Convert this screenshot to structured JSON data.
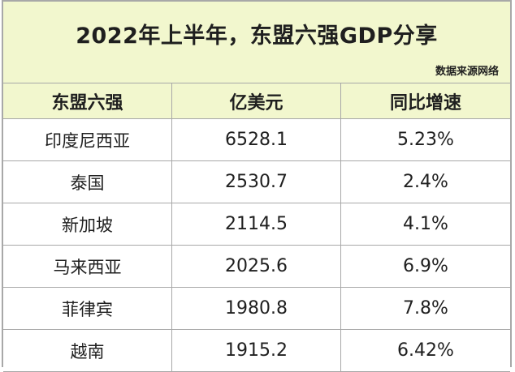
{
  "title": "2022年上半年，东盟六强GDP分享",
  "source": "数据来源网络",
  "columns": [
    "东盟六强",
    "亿美元",
    "同比增速"
  ],
  "rows": [
    {
      "country": "印度尼西亚",
      "gdp": "6528.1",
      "growth": "5.23%"
    },
    {
      "country": "泰国",
      "gdp": "2530.7",
      "growth": "2.4%"
    },
    {
      "country": "新加坡",
      "gdp": "2114.5",
      "growth": "4.1%"
    },
    {
      "country": "马来西亚",
      "gdp": "2025.6",
      "growth": "6.9%"
    },
    {
      "country": "菲律宾",
      "gdp": "1980.8",
      "growth": "7.8%"
    },
    {
      "country": "越南",
      "gdp": "1915.2",
      "growth": "6.42%"
    }
  ],
  "colors": {
    "header_background": "#f2f7ce",
    "border": "#a8a8a8",
    "text": "#1f1f1f"
  }
}
